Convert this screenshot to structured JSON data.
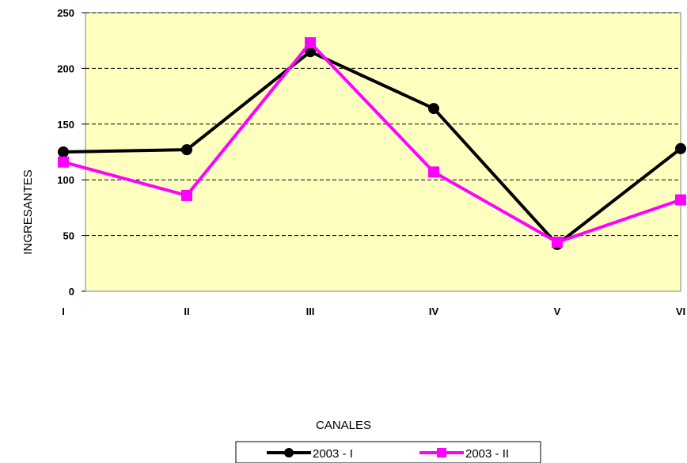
{
  "chart_data": {
    "type": "line",
    "title": "",
    "xlabel": "CANALES",
    "ylabel": "INGRESANTES",
    "categories": [
      "I",
      "II",
      "III",
      "IV",
      "V",
      "VI"
    ],
    "ylim": [
      0,
      250
    ],
    "yticks": [
      0,
      50,
      100,
      150,
      200,
      250
    ],
    "grid": true,
    "legend_position": "bottom",
    "plot_background": "#FFFFC0",
    "series": [
      {
        "name": "2003 - I",
        "color": "#000000",
        "marker": "circle",
        "values": [
          125,
          127,
          215,
          164,
          42,
          128
        ]
      },
      {
        "name": "2003 - II",
        "color": "#FF00FF",
        "marker": "square",
        "values": [
          116,
          86,
          223,
          107,
          44,
          82
        ]
      }
    ]
  }
}
